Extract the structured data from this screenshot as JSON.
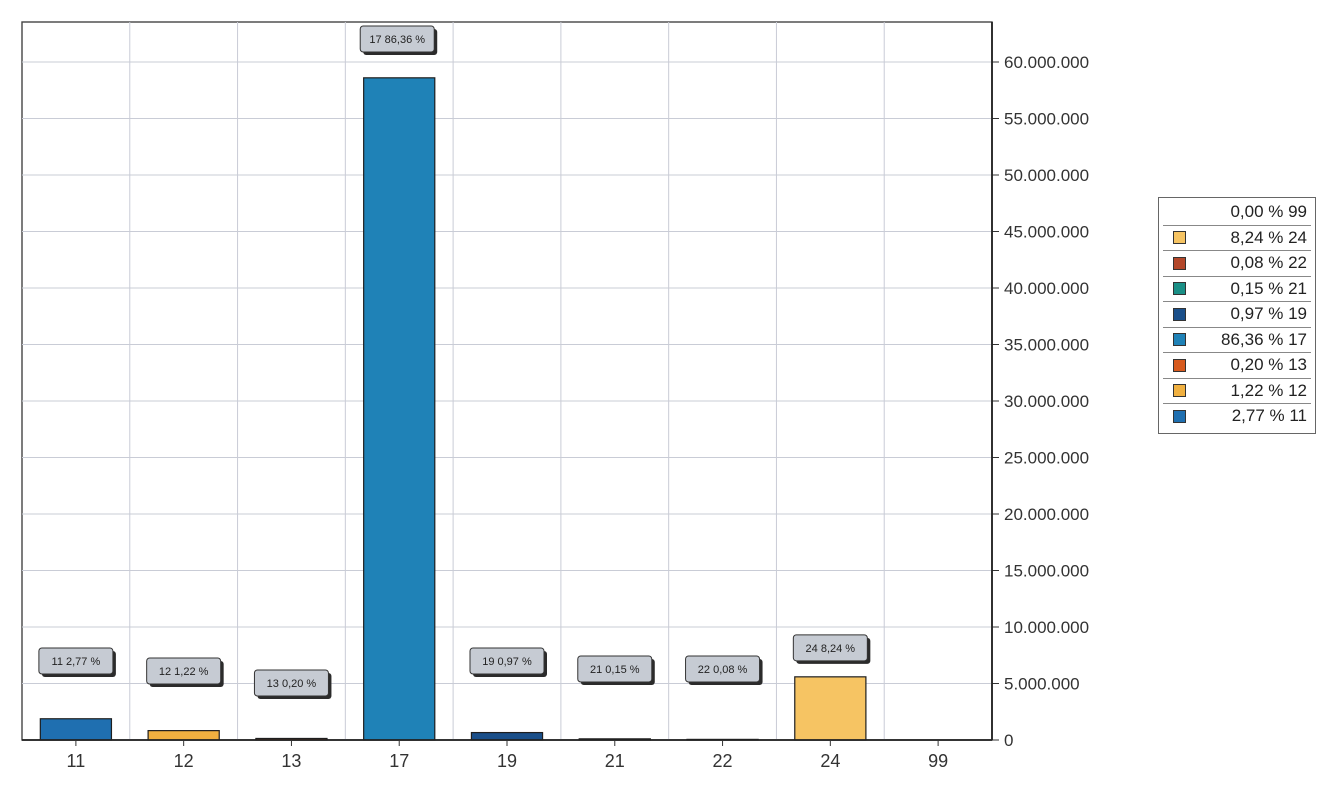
{
  "chart_data": {
    "type": "bar",
    "title": "",
    "xlabel": "",
    "ylabel": "",
    "categories": [
      "11",
      "12",
      "13",
      "17",
      "19",
      "21",
      "22",
      "24",
      "99"
    ],
    "values": [
      1880000,
      830000,
      136000,
      58600000,
      658000,
      102000,
      54000,
      5590000,
      0
    ],
    "percent_labels": [
      "11 2,77 %",
      "12 1,22 %",
      "13 0,20 %",
      "17 86,36 %",
      "19 0,97 %",
      "21 0,15 %",
      "22 0,08 %",
      "24 8,24 %",
      ""
    ],
    "colors": [
      "#1f6fb0",
      "#f0b040",
      "#d75a1e",
      "#1f82b7",
      "#1a4f8a",
      "#1a8f86",
      "#b3472a",
      "#f6c463",
      "#ffffff"
    ],
    "ylim": [
      0,
      60000000
    ],
    "yticks": [
      0,
      5000000,
      10000000,
      15000000,
      20000000,
      25000000,
      30000000,
      35000000,
      40000000,
      45000000,
      50000000,
      55000000,
      60000000
    ],
    "ytick_labels": [
      "0",
      "5.000.000",
      "10.000.000",
      "15.000.000",
      "20.000.000",
      "25.000.000",
      "30.000.000",
      "35.000.000",
      "40.000.000",
      "45.000.000",
      "50.000.000",
      "55.000.000",
      "60.000.000"
    ],
    "y_axis_side": "right",
    "grid": true,
    "legend_position": "right",
    "legend": [
      {
        "label": "0,00 % 99",
        "color": ""
      },
      {
        "label": "8,24 % 24",
        "color": "#f6c463"
      },
      {
        "label": "0,08 % 22",
        "color": "#b3472a"
      },
      {
        "label": "0,15 % 21",
        "color": "#1a8f86"
      },
      {
        "label": "0,97 % 19",
        "color": "#1a4f8a"
      },
      {
        "label": "86,36 % 17",
        "color": "#1f82b7"
      },
      {
        "label": "0,20 % 13",
        "color": "#d75a1e"
      },
      {
        "label": "1,22 % 12",
        "color": "#f0b040"
      },
      {
        "label": "2,77 % 11",
        "color": "#1f6fb0"
      }
    ]
  }
}
